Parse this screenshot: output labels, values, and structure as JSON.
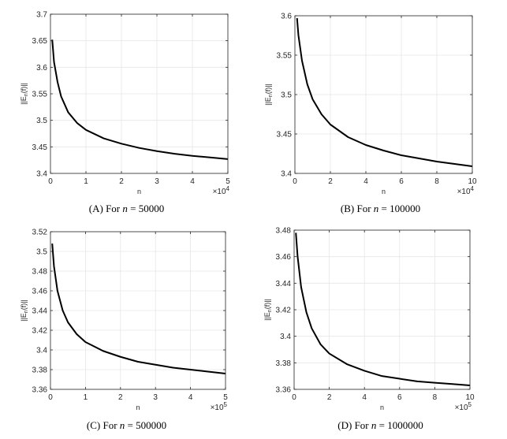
{
  "chart_data": [
    {
      "type": "line",
      "caption": {
        "label": "(A)",
        "prefix": "For",
        "var": "n",
        "eq": "=",
        "value": "50000"
      },
      "xlabel": "n",
      "ylabel": "||E_n(f)||",
      "exponent": "×10^4",
      "xlim": [
        0,
        5
      ],
      "ylim": [
        3.4,
        3.7
      ],
      "xticks": [
        0,
        1,
        2,
        3,
        4,
        5
      ],
      "xtick_labels": [
        "0",
        "1",
        "2",
        "3",
        "4",
        "5"
      ],
      "yticks": [
        3.4,
        3.45,
        3.5,
        3.55,
        3.6,
        3.65,
        3.7
      ],
      "ytick_labels": [
        "3.4",
        "3.45",
        "3.5",
        "3.55",
        "3.6",
        "3.65",
        "3.7"
      ],
      "grid": true,
      "series": [
        {
          "x": [
            0.05,
            0.1,
            0.2,
            0.3,
            0.5,
            0.75,
            1,
            1.5,
            2,
            2.5,
            3,
            3.5,
            4,
            4.5,
            5
          ],
          "y": [
            3.652,
            3.61,
            3.572,
            3.545,
            3.515,
            3.495,
            3.482,
            3.466,
            3.456,
            3.448,
            3.442,
            3.437,
            3.433,
            3.43,
            3.427
          ]
        }
      ]
    },
    {
      "type": "line",
      "caption": {
        "label": "(B)",
        "prefix": "For",
        "var": "n",
        "eq": "=",
        "value": "100000"
      },
      "xlabel": "n",
      "ylabel": "||E_n(f)||",
      "exponent": "×10^4",
      "xlim": [
        0,
        10
      ],
      "ylim": [
        3.4,
        3.6
      ],
      "xticks": [
        0,
        2,
        4,
        6,
        8,
        10
      ],
      "xtick_labels": [
        "0",
        "2",
        "4",
        "6",
        "8",
        "10"
      ],
      "yticks": [
        3.4,
        3.45,
        3.5,
        3.55,
        3.6
      ],
      "ytick_labels": [
        "3.4",
        "3.45",
        "3.5",
        "3.55",
        "3.6"
      ],
      "grid": true,
      "series": [
        {
          "x": [
            0.12,
            0.2,
            0.4,
            0.7,
            1,
            1.5,
            2,
            3,
            4,
            5,
            6,
            7,
            8,
            9,
            10
          ],
          "y": [
            3.597,
            3.575,
            3.543,
            3.513,
            3.494,
            3.475,
            3.462,
            3.446,
            3.436,
            3.429,
            3.423,
            3.419,
            3.415,
            3.412,
            3.409
          ]
        }
      ]
    },
    {
      "type": "line",
      "caption": {
        "label": "(C)",
        "prefix": "For",
        "var": "n",
        "eq": "=",
        "value": "500000"
      },
      "xlabel": "n",
      "ylabel": "||E_n(f)||",
      "exponent": "×10^5",
      "xlim": [
        0,
        5
      ],
      "ylim": [
        3.36,
        3.52
      ],
      "xticks": [
        0,
        1,
        2,
        3,
        4,
        5
      ],
      "xtick_labels": [
        "0",
        "1",
        "2",
        "3",
        "4",
        "5"
      ],
      "yticks": [
        3.36,
        3.38,
        3.4,
        3.42,
        3.44,
        3.46,
        3.48,
        3.5,
        3.52
      ],
      "ytick_labels": [
        "3.36",
        "3.38",
        "3.4",
        "3.42",
        "3.44",
        "3.46",
        "3.48",
        "3.5",
        "3.52"
      ],
      "grid": true,
      "series": [
        {
          "x": [
            0.05,
            0.1,
            0.2,
            0.35,
            0.5,
            0.75,
            1,
            1.5,
            2,
            2.5,
            3,
            3.5,
            4,
            4.5,
            5
          ],
          "y": [
            3.508,
            3.485,
            3.46,
            3.44,
            3.428,
            3.416,
            3.408,
            3.399,
            3.393,
            3.388,
            3.385,
            3.382,
            3.38,
            3.378,
            3.376
          ]
        }
      ]
    },
    {
      "type": "line",
      "caption": {
        "label": "(D)",
        "prefix": "For",
        "var": "n",
        "eq": "=",
        "value": "1000000"
      },
      "xlabel": "n",
      "ylabel": "||E_n(f)||",
      "exponent": "×10^5",
      "xlim": [
        0,
        10
      ],
      "ylim": [
        3.36,
        3.48
      ],
      "xticks": [
        0,
        2,
        4,
        6,
        8,
        10
      ],
      "xtick_labels": [
        "0",
        "2",
        "4",
        "6",
        "8",
        "10"
      ],
      "yticks": [
        3.36,
        3.38,
        3.4,
        3.42,
        3.44,
        3.46,
        3.48
      ],
      "ytick_labels": [
        "3.36",
        "3.38",
        "3.4",
        "3.42",
        "3.44",
        "3.46",
        "3.48"
      ],
      "grid": true,
      "series": [
        {
          "x": [
            0.1,
            0.2,
            0.4,
            0.7,
            1,
            1.5,
            2,
            3,
            4,
            5,
            6,
            7,
            8,
            9,
            10
          ],
          "y": [
            3.478,
            3.46,
            3.437,
            3.418,
            3.406,
            3.394,
            3.387,
            3.379,
            3.374,
            3.37,
            3.368,
            3.366,
            3.365,
            3.364,
            3.363
          ]
        }
      ]
    }
  ]
}
